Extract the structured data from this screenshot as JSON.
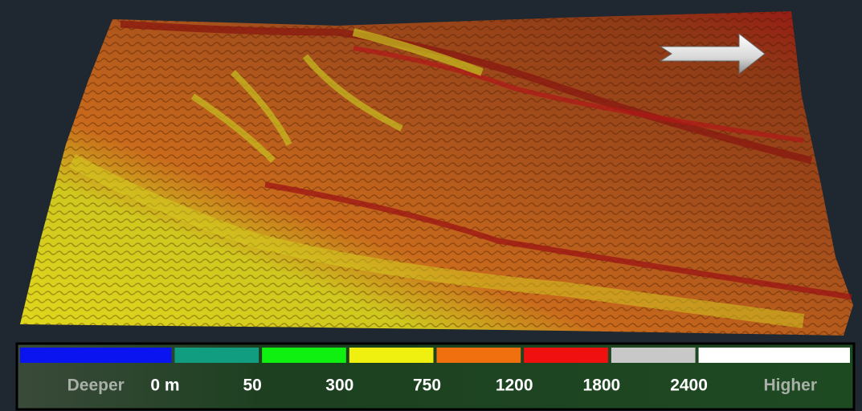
{
  "legend": {
    "colors": [
      "#0a14f0",
      "#119e80",
      "#10f010",
      "#f0f010",
      "#f07010",
      "#f01010",
      "#c8c8c8",
      "#ffffff"
    ],
    "labels": [
      "Deeper",
      "0 m",
      "50",
      "300",
      "750",
      "1200",
      "1800",
      "2400",
      "Higher"
    ]
  }
}
